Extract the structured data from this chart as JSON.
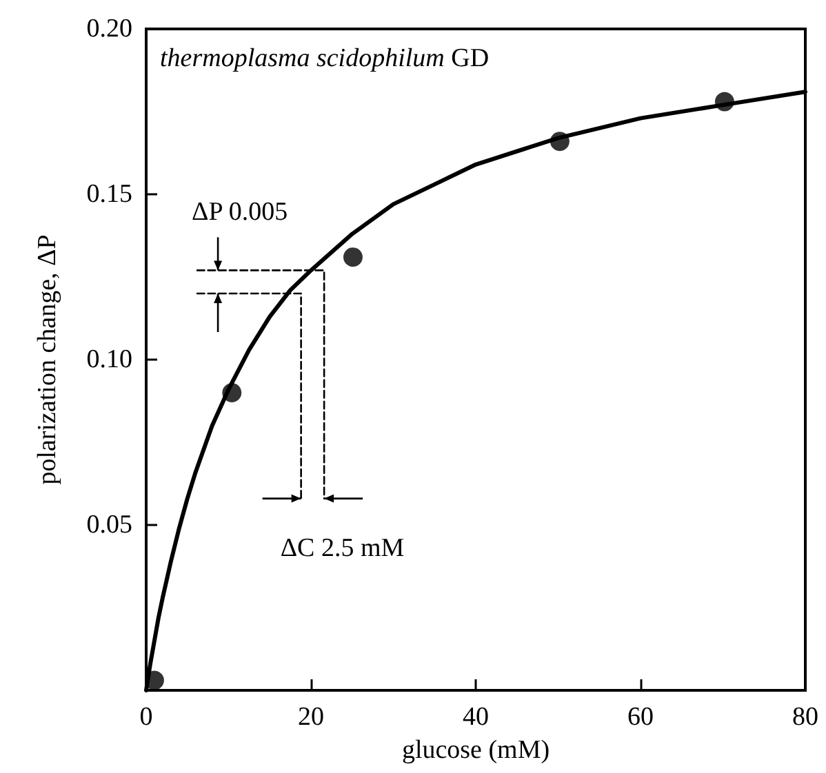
{
  "chart_data": {
    "type": "scatter",
    "xlabel": "glucose (mM)",
    "ylabel": "polarization change, ΔP",
    "xlim": [
      0,
      80
    ],
    "xticks": [
      0,
      20,
      40,
      60,
      80
    ],
    "ylim": [
      0,
      0.2
    ],
    "yticks": [
      {
        "value": 0.05,
        "label": "0.05"
      },
      {
        "value": 0.1,
        "label": "0.10"
      },
      {
        "value": 0.15,
        "label": "0.15"
      },
      {
        "value": 0.2,
        "label": "0.20"
      }
    ],
    "marker": "circle",
    "grid": false,
    "series": [
      {
        "color": "#000000",
        "x": [
          1,
          10.4,
          25.1,
          50.2,
          70.2
        ],
        "values": [
          0.003,
          0.09,
          0.131,
          0.166,
          0.178
        ]
      },
      {
        "type": "line",
        "marker": "none",
        "line_style": "solid",
        "color": "#000000",
        "x": [
          0,
          0.5,
          1,
          1.5,
          2,
          3,
          4,
          5,
          6,
          8,
          10,
          12.5,
          15,
          17.5,
          20,
          25,
          30,
          35,
          40,
          50,
          60,
          70,
          80
        ],
        "values": [
          0,
          0.008,
          0.015,
          0.022,
          0.028,
          0.039,
          0.049,
          0.058,
          0.066,
          0.08,
          0.091,
          0.103,
          0.113,
          0.121,
          0.127,
          0.138,
          0.147,
          0.153,
          0.159,
          0.167,
          0.173,
          0.177,
          0.181
        ]
      },
      {
        "type": "line",
        "marker": "none",
        "line_style": "dashed",
        "color": "#000000",
        "x": [
          6.2,
          21.6,
          21.6
        ],
        "values": [
          0.127,
          0.127,
          0.058
        ]
      },
      {
        "type": "line",
        "marker": "none",
        "line_style": "dashed",
        "color": "#000000",
        "x": [
          6.2,
          18.8,
          18.8
        ],
        "values": [
          0.12,
          0.12,
          0.058
        ]
      }
    ],
    "annotations": [
      "thermoplasma scidophilum GD",
      "ΔP 0.005",
      "ΔC 2.5 mM"
    ]
  }
}
